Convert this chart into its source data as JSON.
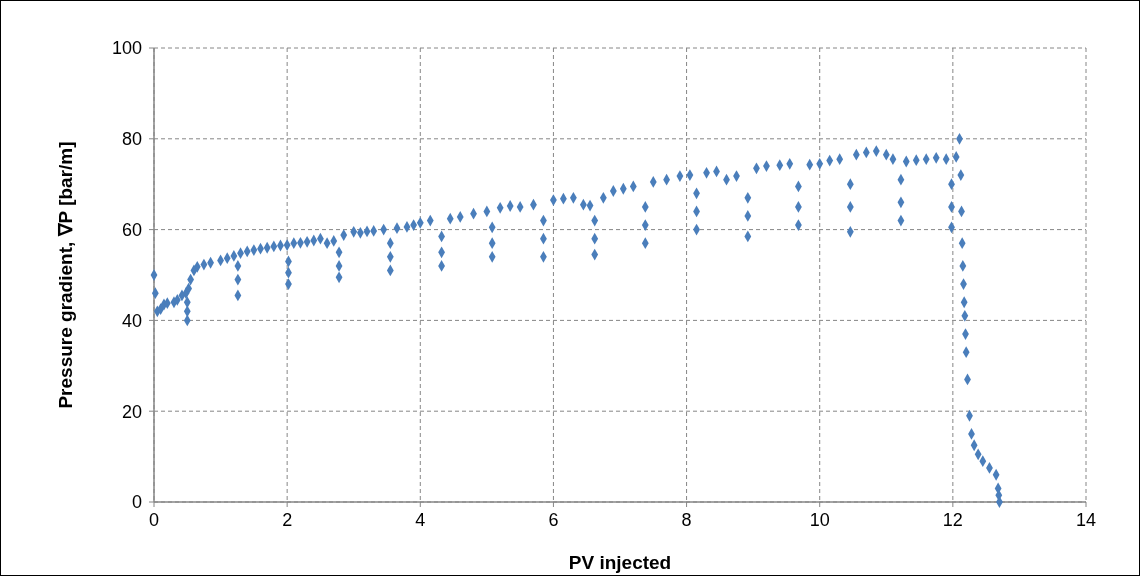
{
  "chart_data": {
    "type": "scatter",
    "xlabel": "PV injected",
    "ylabel": "Pressure gradient, ∇P [bar/m]",
    "xlim": [
      0,
      14
    ],
    "xticks": [
      0,
      2,
      4,
      6,
      8,
      10,
      12,
      14
    ],
    "ylim": [
      0,
      100
    ],
    "yticks": [
      0,
      20,
      40,
      60,
      80,
      100
    ],
    "grid": true,
    "marker": "diamond",
    "series": [
      {
        "color": "#4a7ebb",
        "x": [
          0,
          0.02,
          0.05,
          0.1,
          0.15,
          0.2,
          0.3,
          0.35,
          0.42,
          0.48,
          0.5,
          0.5,
          0.5,
          0.52,
          0.55,
          0.6,
          0.65,
          0.75,
          0.85,
          1.0,
          1.1,
          1.2,
          1.26,
          1.26,
          1.26,
          1.3,
          1.4,
          1.5,
          1.6,
          1.7,
          1.8,
          1.9,
          2.0,
          2.02,
          2.02,
          2.02,
          2.1,
          2.2,
          2.3,
          2.4,
          2.5,
          2.6,
          2.7,
          2.78,
          2.78,
          2.78,
          2.85,
          3.0,
          3.1,
          3.2,
          3.3,
          3.45,
          3.55,
          3.55,
          3.55,
          3.65,
          3.8,
          3.9,
          4.0,
          4.15,
          4.32,
          4.32,
          4.32,
          4.45,
          4.6,
          4.8,
          5.0,
          5.08,
          5.08,
          5.08,
          5.2,
          5.35,
          5.5,
          5.7,
          5.85,
          5.85,
          5.85,
          6.0,
          6.15,
          6.3,
          6.45,
          6.55,
          6.62,
          6.62,
          6.62,
          6.75,
          6.9,
          7.05,
          7.2,
          7.38,
          7.38,
          7.38,
          7.5,
          7.7,
          7.9,
          8.05,
          8.15,
          8.15,
          8.15,
          8.3,
          8.45,
          8.6,
          8.75,
          8.92,
          8.92,
          8.92,
          9.05,
          9.2,
          9.4,
          9.55,
          9.68,
          9.68,
          9.68,
          9.85,
          10.0,
          10.15,
          10.3,
          10.46,
          10.46,
          10.46,
          10.55,
          10.7,
          10.85,
          11.0,
          11.1,
          11.22,
          11.22,
          11.22,
          11.3,
          11.45,
          11.6,
          11.75,
          11.9,
          11.98,
          11.98,
          11.98,
          12.05,
          12.1,
          12.12,
          12.13,
          12.14,
          12.15,
          12.16,
          12.17,
          12.18,
          12.19,
          12.2,
          12.22,
          12.25,
          12.28,
          12.32,
          12.38,
          12.45,
          12.55,
          12.65,
          12.68,
          12.69,
          12.7
        ],
        "values": [
          50,
          46,
          42,
          42.5,
          43.5,
          43.8,
          44,
          44.5,
          45.5,
          46,
          44,
          42,
          40,
          47,
          49,
          51,
          51.8,
          52.3,
          52.7,
          53.2,
          53.7,
          54.2,
          52,
          49,
          45.5,
          54.8,
          55.2,
          55.5,
          55.8,
          56,
          56.3,
          56.5,
          56.6,
          53,
          50.5,
          48,
          57,
          57.1,
          57.3,
          57.6,
          58,
          57,
          57.5,
          55,
          52,
          49.5,
          58.8,
          59.5,
          59.3,
          59.6,
          59.7,
          60,
          57,
          54,
          51,
          60.3,
          60.6,
          61,
          61.5,
          62,
          58.5,
          55,
          52,
          62.4,
          62.8,
          63.5,
          64,
          60.5,
          57,
          54,
          64.8,
          65.2,
          65,
          65.5,
          62,
          58,
          54,
          66.5,
          66.8,
          67,
          65.5,
          65.3,
          62,
          58,
          54.5,
          67,
          68.5,
          69,
          69.5,
          65,
          61,
          57,
          70.5,
          71,
          71.8,
          72,
          68,
          64,
          60,
          72.5,
          72.8,
          71,
          71.8,
          67,
          63,
          58.5,
          73.5,
          74,
          74.2,
          74.5,
          69.5,
          65,
          61,
          74.3,
          74.5,
          75.2,
          75.5,
          70,
          65,
          59.5,
          76.5,
          77,
          77.3,
          76.5,
          75.5,
          71,
          66,
          62,
          75,
          75.3,
          75.5,
          75.8,
          75.5,
          70,
          65,
          60.5,
          76,
          80,
          72,
          64,
          57,
          52,
          48,
          44,
          41,
          37,
          33,
          27,
          19,
          15,
          12.5,
          10.5,
          9,
          7.5,
          6,
          3,
          1.5,
          0
        ]
      }
    ]
  }
}
